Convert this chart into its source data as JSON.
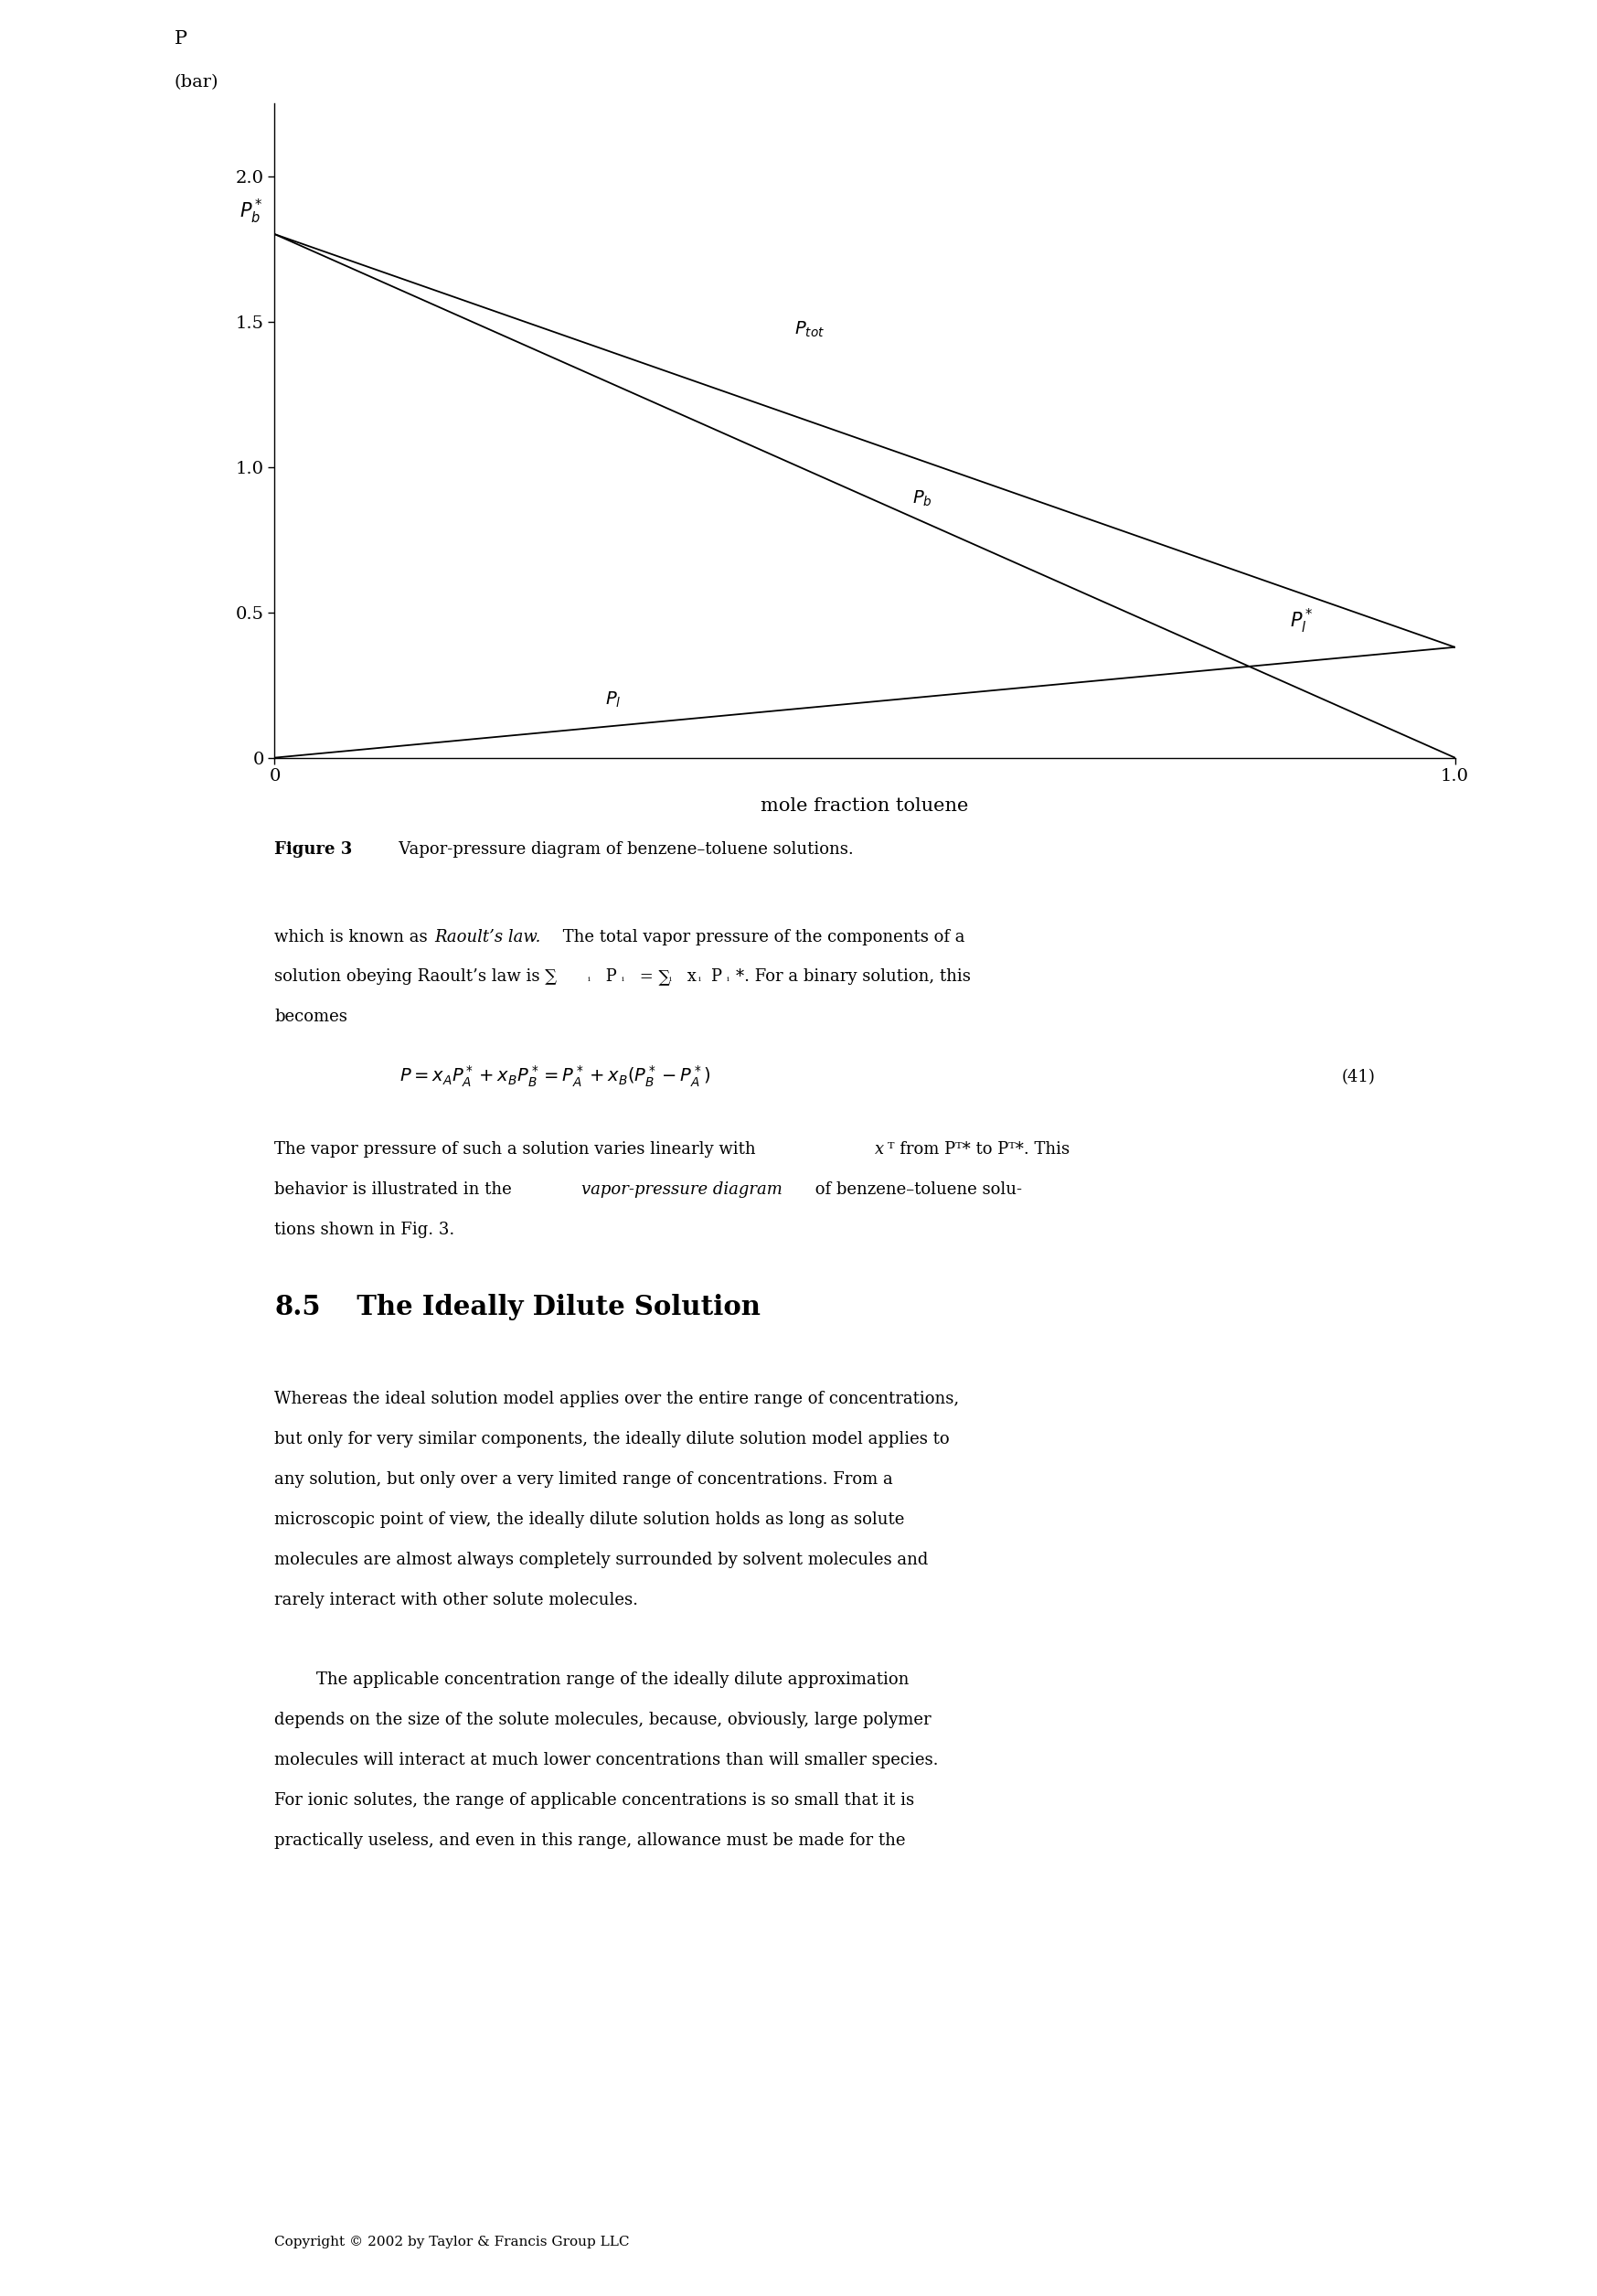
{
  "xlabel": "mole fraction toluene",
  "yticks": [
    0,
    0.5,
    1.0,
    1.5,
    2.0
  ],
  "xticks": [
    0,
    1.0
  ],
  "xmin": 0.0,
  "xmax": 1.0,
  "ymin": 0.0,
  "ymax": 2.25,
  "P_b_star": 1.8,
  "P_l_star": 0.38,
  "bgcolor": "#ffffff",
  "lc": "#000000",
  "caption_bold": "Figure 3",
  "caption_rest": "   Vapor-pressure diagram of benzene–toluene solutions.",
  "footer": "Copyright © 2002 by Taylor & Francis Group LLC"
}
